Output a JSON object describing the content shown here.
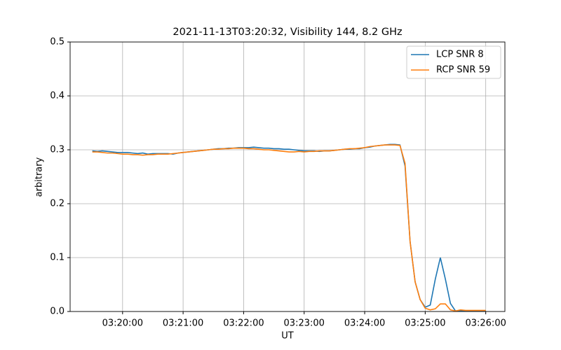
{
  "chart_data": {
    "type": "line",
    "title": "2021-11-13T03:20:32, Visibility 144, 8.2 GHz",
    "x_label": "UT",
    "y_label": "arbitrary",
    "x": [
      "03:19:30",
      "03:19:35",
      "03:19:40",
      "03:19:45",
      "03:19:50",
      "03:19:55",
      "03:20:00",
      "03:20:05",
      "03:20:10",
      "03:20:15",
      "03:20:20",
      "03:20:25",
      "03:20:30",
      "03:20:35",
      "03:20:40",
      "03:20:45",
      "03:20:50",
      "03:20:55",
      "03:21:00",
      "03:21:05",
      "03:21:10",
      "03:21:15",
      "03:21:20",
      "03:21:25",
      "03:21:30",
      "03:21:35",
      "03:21:40",
      "03:21:45",
      "03:21:50",
      "03:21:55",
      "03:22:00",
      "03:22:05",
      "03:22:10",
      "03:22:15",
      "03:22:20",
      "03:22:25",
      "03:22:30",
      "03:22:35",
      "03:22:40",
      "03:22:45",
      "03:22:50",
      "03:22:55",
      "03:23:00",
      "03:23:05",
      "03:23:10",
      "03:23:15",
      "03:23:20",
      "03:23:25",
      "03:23:30",
      "03:23:35",
      "03:23:40",
      "03:23:45",
      "03:23:50",
      "03:23:55",
      "03:24:00",
      "03:24:05",
      "03:24:10",
      "03:24:15",
      "03:24:20",
      "03:24:25",
      "03:24:30",
      "03:24:35",
      "03:24:40",
      "03:24:45",
      "03:24:50",
      "03:24:55",
      "03:25:00",
      "03:25:05",
      "03:25:10",
      "03:25:15",
      "03:25:20",
      "03:25:25",
      "03:25:30",
      "03:25:35",
      "03:25:40",
      "03:25:45",
      "03:25:50",
      "03:25:55",
      "03:26:00"
    ],
    "series": [
      {
        "name": "LCP SNR 8",
        "color": "#1f77b4",
        "values": [
          0.298,
          0.297,
          0.298,
          0.297,
          0.296,
          0.295,
          0.295,
          0.295,
          0.294,
          0.293,
          0.294,
          0.292,
          0.293,
          0.293,
          0.293,
          0.293,
          0.292,
          0.294,
          0.295,
          0.296,
          0.297,
          0.298,
          0.299,
          0.3,
          0.301,
          0.302,
          0.302,
          0.303,
          0.303,
          0.304,
          0.304,
          0.304,
          0.305,
          0.304,
          0.303,
          0.303,
          0.302,
          0.302,
          0.301,
          0.301,
          0.3,
          0.299,
          0.298,
          0.298,
          0.298,
          0.297,
          0.298,
          0.298,
          0.299,
          0.3,
          0.301,
          0.301,
          0.302,
          0.302,
          0.304,
          0.305,
          0.307,
          0.308,
          0.309,
          0.31,
          0.31,
          0.309,
          0.27,
          0.13,
          0.055,
          0.022,
          0.008,
          0.012,
          0.06,
          0.1,
          0.06,
          0.015,
          0.001,
          0.001,
          0.001,
          0.001,
          0.001,
          0.001,
          0.001
        ]
      },
      {
        "name": "RCP SNR 59",
        "color": "#ff7f0e",
        "values": [
          0.296,
          0.296,
          0.295,
          0.294,
          0.294,
          0.293,
          0.292,
          0.292,
          0.291,
          0.291,
          0.29,
          0.291,
          0.291,
          0.292,
          0.292,
          0.292,
          0.293,
          0.294,
          0.295,
          0.296,
          0.297,
          0.298,
          0.299,
          0.3,
          0.301,
          0.301,
          0.302,
          0.302,
          0.303,
          0.303,
          0.303,
          0.302,
          0.302,
          0.301,
          0.3,
          0.3,
          0.299,
          0.298,
          0.297,
          0.296,
          0.296,
          0.297,
          0.296,
          0.297,
          0.297,
          0.298,
          0.298,
          0.298,
          0.299,
          0.3,
          0.301,
          0.302,
          0.302,
          0.303,
          0.304,
          0.306,
          0.307,
          0.308,
          0.309,
          0.309,
          0.309,
          0.308,
          0.275,
          0.13,
          0.055,
          0.022,
          0.006,
          0.003,
          0.005,
          0.014,
          0.014,
          0.003,
          0.001,
          0.003,
          0.002,
          0.002,
          0.002,
          0.002,
          0.002
        ]
      }
    ],
    "xlim": [
      "03:19:08",
      "03:26:19"
    ],
    "xticks": [
      "03:20:00",
      "03:21:00",
      "03:22:00",
      "03:23:00",
      "03:24:00",
      "03:25:00",
      "03:26:00"
    ],
    "ylim": [
      0,
      0.5
    ],
    "yticks": [
      {
        "value": 0,
        "label": "0.0"
      },
      0.1,
      0.2,
      0.3,
      0.4,
      0.5
    ],
    "grid": true,
    "legend": "upper right"
  }
}
